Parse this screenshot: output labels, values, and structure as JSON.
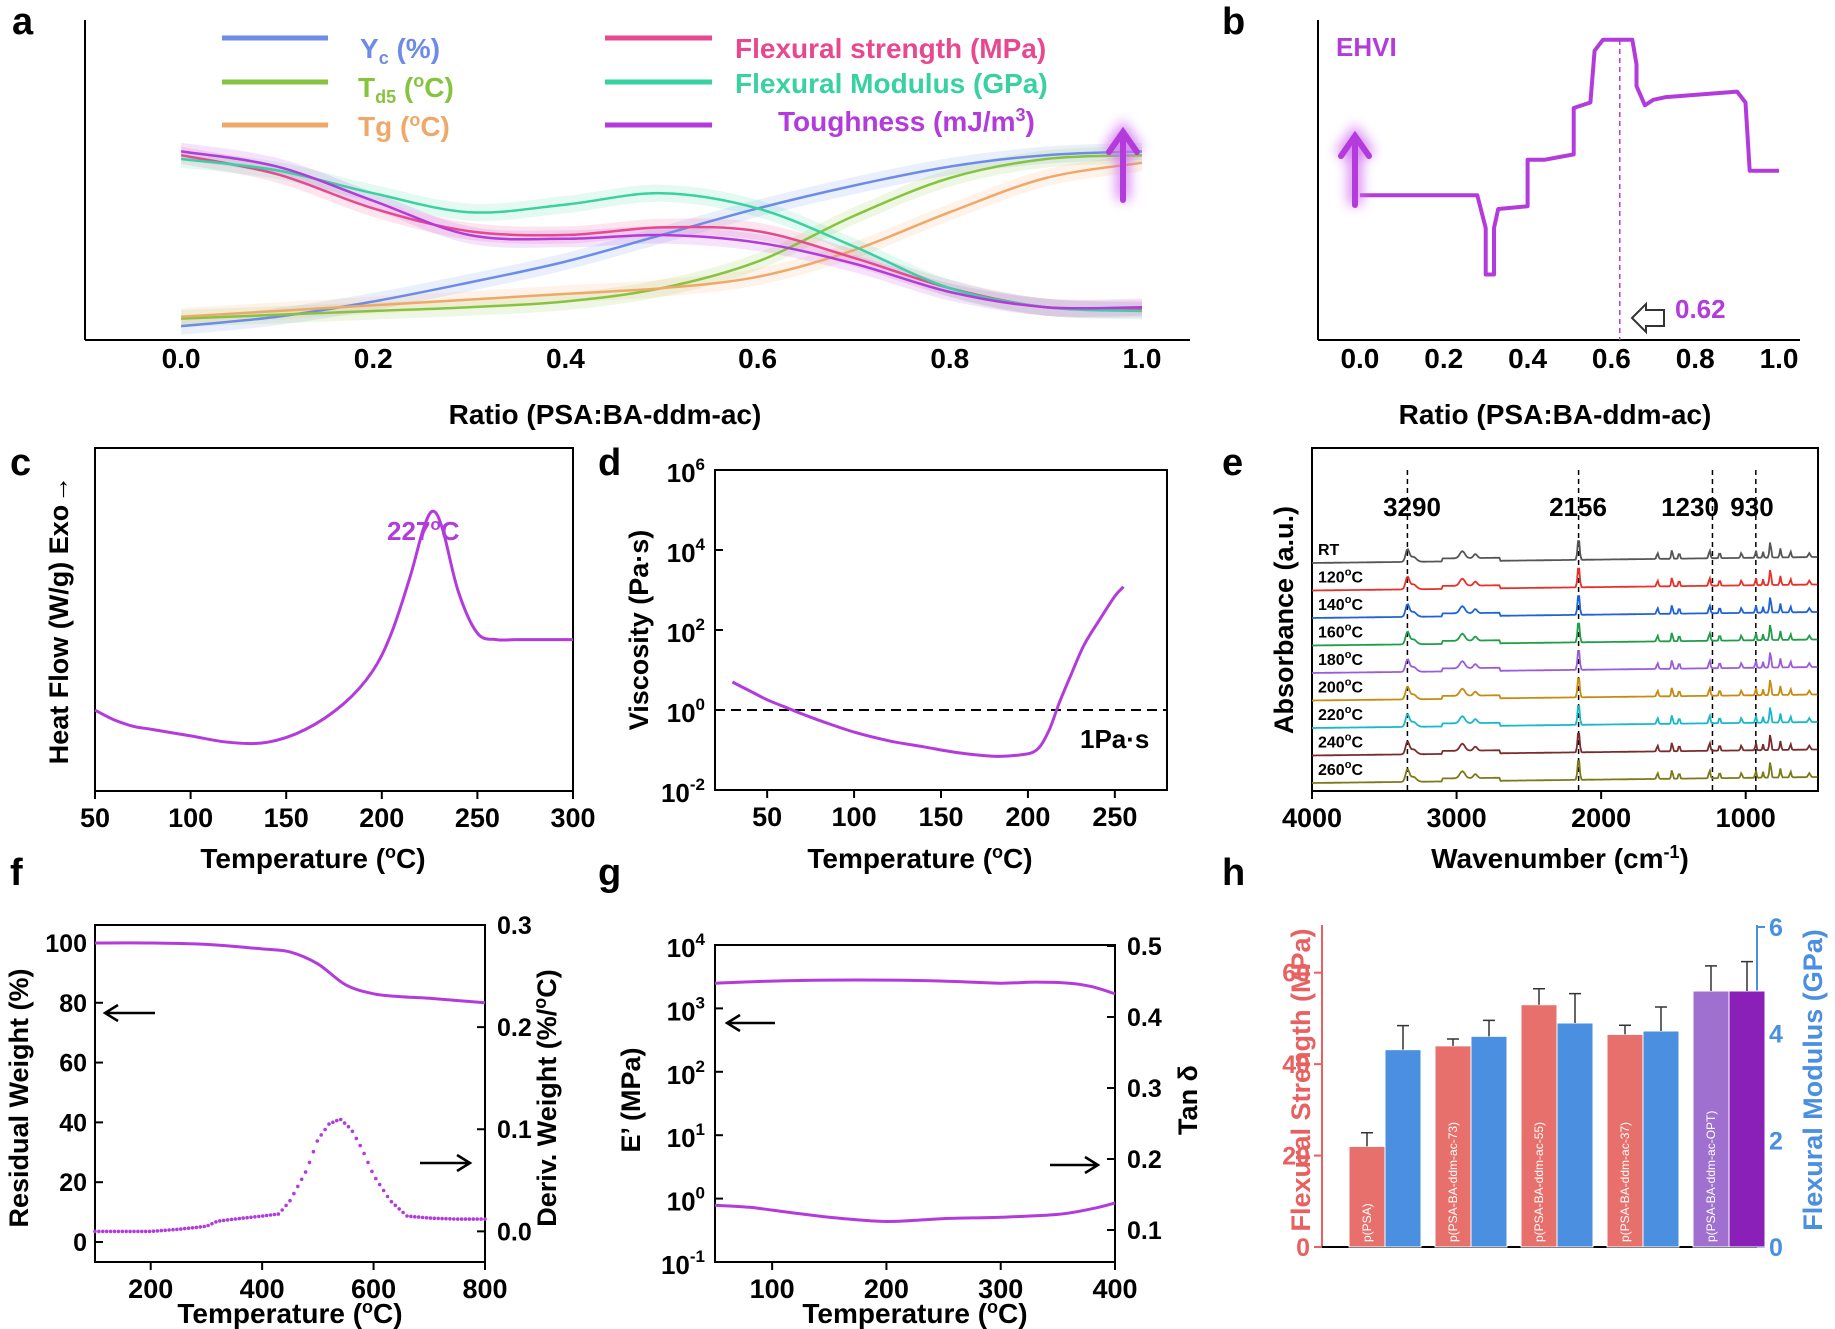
{
  "panel_letters": {
    "a": "a",
    "b": "b",
    "c": "c",
    "d": "d",
    "e": "e",
    "f": "f",
    "g": "g",
    "h": "h"
  },
  "colors": {
    "yc": "#6d8ce8",
    "td5": "#86c440",
    "tg": "#f0a868",
    "fs": "#e8488e",
    "fm": "#38d2a0",
    "tough": "#b43bdb",
    "purple": "#b43bdb",
    "strength_axis": "#e86060",
    "modulus_axis": "#4a8fe0",
    "bar_red": "#e8706c",
    "bar_blue": "#4a8fe0",
    "bar_purple_light": "#a070d0",
    "bar_purple_dark": "#8a20b8"
  },
  "chart_data": [
    {
      "panel": "a",
      "type": "line",
      "xlabel": "Ratio (PSA:BA-ddm-ac)",
      "xlim": [
        -0.1,
        1.05
      ],
      "xticks": [
        "0.0",
        "0.2",
        "0.4",
        "0.6",
        "0.8",
        "1.0"
      ],
      "legend": {
        "placement": "top",
        "yc": "Y",
        "yc_sub": "c",
        "yc_unit": " (%)",
        "td5": "T",
        "td5_sub": "d5",
        "td5_unit": " (",
        "td5_deg": "o",
        "td5_end": "C)",
        "tg": "Tg (",
        "tg_deg": "o",
        "tg_end": "C)",
        "fs": "Flexural strength (MPa)",
        "fm": "Flexural Modulus (GPa)",
        "tough": "Toughness (mJ/m",
        "tough_sup": "3",
        "tough_end": ")"
      },
      "normalized": true,
      "x": [
        0.0,
        0.1,
        0.2,
        0.3,
        0.4,
        0.5,
        0.6,
        0.7,
        0.8,
        0.9,
        1.0
      ],
      "series": [
        {
          "key": "yc",
          "name": "Yc (%)",
          "values": [
            0.02,
            0.07,
            0.15,
            0.25,
            0.36,
            0.5,
            0.64,
            0.76,
            0.86,
            0.92,
            0.94
          ]
        },
        {
          "key": "td5",
          "name": "Td5 (oC)",
          "values": [
            0.06,
            0.08,
            0.1,
            0.12,
            0.15,
            0.22,
            0.36,
            0.6,
            0.8,
            0.9,
            0.92
          ]
        },
        {
          "key": "tg",
          "name": "Tg (oC)",
          "values": [
            0.07,
            0.1,
            0.13,
            0.16,
            0.19,
            0.22,
            0.28,
            0.42,
            0.62,
            0.8,
            0.88
          ]
        },
        {
          "key": "fs",
          "name": "Flexural strength (MPa)",
          "values": [
            0.92,
            0.82,
            0.64,
            0.52,
            0.5,
            0.54,
            0.52,
            0.38,
            0.22,
            0.12,
            0.11
          ]
        },
        {
          "key": "fm",
          "name": "Flexural Modulus (GPa)",
          "values": [
            0.9,
            0.84,
            0.72,
            0.62,
            0.66,
            0.72,
            0.64,
            0.44,
            0.22,
            0.12,
            0.1
          ]
        },
        {
          "key": "tough",
          "name": "Toughness (mJ/m3)",
          "values": [
            0.94,
            0.86,
            0.68,
            0.5,
            0.48,
            0.5,
            0.46,
            0.35,
            0.2,
            0.12,
            0.12
          ]
        }
      ]
    },
    {
      "panel": "b",
      "type": "line",
      "label": "EHVI",
      "annotation": "0.62",
      "marker_x": 0.62,
      "xlabel": "Ratio (PSA:BA-ddm-ac)",
      "xlim": [
        -0.1,
        1.05
      ],
      "xticks": [
        "0.0",
        "0.2",
        "0.4",
        "0.6",
        "0.8",
        "1.0"
      ],
      "normalized": true,
      "points": [
        [
          0.0,
          0.42
        ],
        [
          0.28,
          0.42
        ],
        [
          0.3,
          0.3
        ],
        [
          0.3,
          0.13
        ],
        [
          0.32,
          0.13
        ],
        [
          0.32,
          0.3
        ],
        [
          0.33,
          0.37
        ],
        [
          0.4,
          0.38
        ],
        [
          0.4,
          0.55
        ],
        [
          0.44,
          0.55
        ],
        [
          0.51,
          0.57
        ],
        [
          0.51,
          0.74
        ],
        [
          0.55,
          0.76
        ],
        [
          0.56,
          0.95
        ],
        [
          0.58,
          0.99
        ],
        [
          0.65,
          0.99
        ],
        [
          0.66,
          0.9
        ],
        [
          0.66,
          0.82
        ],
        [
          0.68,
          0.75
        ],
        [
          0.7,
          0.77
        ],
        [
          0.73,
          0.78
        ],
        [
          0.9,
          0.8
        ],
        [
          0.92,
          0.76
        ],
        [
          0.93,
          0.51
        ],
        [
          1.0,
          0.51
        ]
      ]
    },
    {
      "panel": "c",
      "type": "line",
      "ylabel": "Heat Flow (W/g) Exo",
      "ylabel_arrow": "→",
      "xlabel": "Temperature (",
      "xlabel_deg": "o",
      "xlabel_end": "C)",
      "xlim": [
        50,
        300
      ],
      "xticks": [
        "50",
        "100",
        "150",
        "200",
        "250",
        "300"
      ],
      "peak_label": "227",
      "peak_deg": "o",
      "peak_end": "C",
      "x": [
        50,
        60,
        70,
        80,
        100,
        120,
        140,
        160,
        180,
        195,
        205,
        215,
        222,
        227,
        232,
        240,
        250,
        260,
        270,
        280,
        300
      ],
      "y": [
        0.18,
        0.15,
        0.13,
        0.12,
        0.1,
        0.08,
        0.08,
        0.12,
        0.2,
        0.3,
        0.42,
        0.6,
        0.75,
        0.8,
        0.74,
        0.55,
        0.42,
        0.4,
        0.4,
        0.4,
        0.4
      ]
    },
    {
      "panel": "d",
      "type": "line",
      "ylabel": "Viscosity (Pa·s)",
      "xlabel": "Temperature (",
      "xlabel_deg": "o",
      "xlabel_end": "C)",
      "xlim": [
        20,
        280
      ],
      "ylim_log": [
        -2,
        6
      ],
      "xticks": [
        "50",
        "100",
        "150",
        "200",
        "250"
      ],
      "yticks": [
        {
          "base": "10",
          "exp": "-2"
        },
        {
          "base": "10",
          "exp": "0"
        },
        {
          "base": "10",
          "exp": "2"
        },
        {
          "base": "10",
          "exp": "4"
        },
        {
          "base": "10",
          "exp": "6"
        }
      ],
      "reference_label": "1Pa·s",
      "reference_value": 1,
      "x": [
        30,
        40,
        50,
        60,
        70,
        80,
        100,
        120,
        140,
        160,
        180,
        195,
        205,
        212,
        218,
        225,
        232,
        240,
        250,
        255
      ],
      "y": [
        5,
        3,
        1.8,
        1.2,
        0.8,
        0.55,
        0.28,
        0.17,
        0.12,
        0.085,
        0.07,
        0.075,
        0.1,
        0.3,
        1.5,
        8,
        40,
        150,
        700,
        1200
      ]
    },
    {
      "panel": "e",
      "type": "line",
      "ylabel": "Absorbance (a.u.)",
      "xlabel": "Wavenumber (cm",
      "xlabel_sup": "-1",
      "xlabel_end": ")",
      "xlim": [
        4000,
        500
      ],
      "xticks": [
        "4000",
        "3000",
        "2000",
        "1000"
      ],
      "peaks": [
        "3290",
        "2156",
        "1230",
        "930"
      ],
      "series": [
        {
          "name": "RT",
          "label": "RT",
          "color": "#555555"
        },
        {
          "name": "120oC",
          "label": "120",
          "color": "#e8302a"
        },
        {
          "name": "140oC",
          "label": "140",
          "color": "#1e62d8"
        },
        {
          "name": "160oC",
          "label": "160",
          "color": "#1f9e48"
        },
        {
          "name": "180oC",
          "label": "180",
          "color": "#9a5cd8"
        },
        {
          "name": "200oC",
          "label": "200",
          "color": "#c88a10"
        },
        {
          "name": "220oC",
          "label": "220",
          "color": "#18b8c8"
        },
        {
          "name": "240oC",
          "label": "240",
          "color": "#7a2c2c"
        },
        {
          "name": "260oC",
          "label": "260",
          "color": "#7a7a18"
        }
      ],
      "deg": "o",
      "deg_end": "C"
    },
    {
      "panel": "f",
      "type": "line",
      "ylabel_left": "Residual Weight (%)",
      "ylabel_right": "Deriv. Weight (%/",
      "ylabel_right_deg": "o",
      "ylabel_right_end": "C)",
      "xlabel": "Temperature (",
      "xlabel_deg": "o",
      "xlabel_end": "C)",
      "xlim": [
        100,
        800
      ],
      "ylim_left": [
        0,
        105
      ],
      "ylim_right": [
        -0.03,
        0.3
      ],
      "xticks": [
        "200",
        "400",
        "600",
        "800"
      ],
      "yticks_left": [
        "0",
        "20",
        "40",
        "60",
        "80",
        "100"
      ],
      "yticks_right": [
        "0.0",
        "0.1",
        "0.2",
        "0.3"
      ],
      "residual": {
        "x": [
          100,
          200,
          300,
          400,
          450,
          500,
          550,
          600,
          650,
          700,
          800
        ],
        "y": [
          100,
          100,
          99.5,
          98,
          97,
          93,
          86,
          83,
          82,
          81.5,
          80
        ]
      },
      "derivative": {
        "x": [
          100,
          150,
          200,
          250,
          300,
          320,
          350,
          400,
          430,
          450,
          480,
          500,
          520,
          540,
          560,
          580,
          600,
          630,
          660,
          700,
          750,
          800
        ],
        "y": [
          0.0,
          0.0,
          0.0,
          0.002,
          0.005,
          0.01,
          0.012,
          0.015,
          0.017,
          0.03,
          0.06,
          0.09,
          0.105,
          0.11,
          0.1,
          0.08,
          0.055,
          0.03,
          0.015,
          0.013,
          0.012,
          0.012
        ]
      }
    },
    {
      "panel": "g",
      "type": "line",
      "ylabel_left": "E’ (MPa)",
      "ylabel_right": "Tan δ",
      "xlabel": "Temperature (",
      "xlabel_deg": "o",
      "xlabel_end": "C)",
      "xlim": [
        50,
        400
      ],
      "ylim_left_log": [
        -1,
        4
      ],
      "ylim_right": [
        0.08,
        0.5
      ],
      "xticks": [
        "100",
        "200",
        "300",
        "400"
      ],
      "yticks_left": [
        {
          "base": "10",
          "exp": "-1"
        },
        {
          "base": "10",
          "exp": "0"
        },
        {
          "base": "10",
          "exp": "1"
        },
        {
          "base": "10",
          "exp": "2"
        },
        {
          "base": "10",
          "exp": "3"
        },
        {
          "base": "10",
          "exp": "4"
        }
      ],
      "yticks_right": [
        "0.1",
        "0.2",
        "0.3",
        "0.4",
        "0.5"
      ],
      "storage_modulus": {
        "x": [
          50,
          100,
          150,
          200,
          250,
          300,
          330,
          360,
          380,
          400
        ],
        "y": [
          2500,
          2700,
          2800,
          2800,
          2700,
          2500,
          2600,
          2500,
          2200,
          1700
        ]
      },
      "tan_delta": {
        "x": [
          50,
          80,
          100,
          150,
          200,
          250,
          300,
          350,
          380,
          400
        ],
        "y": [
          0.135,
          0.132,
          0.128,
          0.118,
          0.112,
          0.116,
          0.118,
          0.122,
          0.13,
          0.138
        ]
      }
    },
    {
      "panel": "h",
      "type": "bar",
      "ylabel_left": "Flexural Strength (MPa)",
      "ylabel_right": "Flexural Modulus (GPa)",
      "ylim_left": [
        0,
        70
      ],
      "ylim_right": [
        0,
        6
      ],
      "yticks_left": [
        "0",
        "20",
        "40",
        "60"
      ],
      "yticks_right": [
        "0",
        "2",
        "4",
        "6"
      ],
      "categories": [
        "p(PSA)",
        "p(PSA-BA-ddm-ac-73)",
        "p(PSA-BA-ddm-ac-55)",
        "p(PSA-BA-ddm-ac-37)",
        "p(PSA-BA-ddm-ac-OPT)"
      ],
      "strength": [
        22,
        44,
        53,
        46.5,
        56
      ],
      "strength_err": [
        3,
        1.5,
        3.5,
        2,
        5.5
      ],
      "modulus": [
        3.7,
        3.95,
        4.2,
        4.05,
        4.8
      ],
      "modulus_err": [
        0.45,
        0.3,
        0.55,
        0.45,
        0.55
      ]
    }
  ]
}
